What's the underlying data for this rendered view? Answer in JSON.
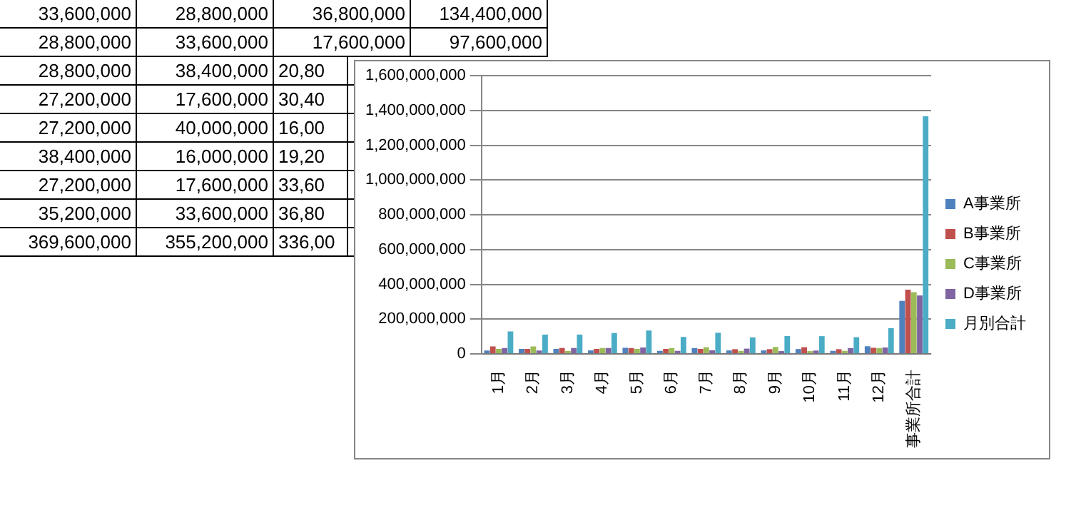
{
  "chart_data": {
    "type": "bar",
    "categories": [
      "1月",
      "2月",
      "3月",
      "4月",
      "5月",
      "6月",
      "7月",
      "8月",
      "9月",
      "10月",
      "11月",
      "12月",
      "事業所合計"
    ],
    "series": [
      {
        "name": "A事業所",
        "color": "#4f81bd",
        "values": [
          20000000,
          29000000,
          29000000,
          20000000,
          35200000,
          17600000,
          33600000,
          20000000,
          20000000,
          28000000,
          17600000,
          44000000,
          305000000
        ]
      },
      {
        "name": "B事業所",
        "color": "#c0504d",
        "values": [
          43000000,
          29000000,
          34000000,
          29000000,
          33600000,
          28800000,
          28800000,
          27200000,
          27200000,
          38400000,
          27200000,
          35200000,
          369600000
        ]
      },
      {
        "name": "C事業所",
        "color": "#9bbb59",
        "values": [
          29000000,
          43000000,
          17000000,
          34000000,
          28800000,
          33600000,
          38400000,
          17600000,
          40000000,
          16000000,
          17600000,
          33600000,
          355200000
        ]
      },
      {
        "name": "D事業所",
        "color": "#8064a2",
        "values": [
          34000000,
          20000000,
          34000000,
          34000000,
          36800000,
          17600000,
          20800000,
          30400000,
          16000000,
          19200000,
          33600000,
          36800000,
          336000000
        ]
      },
      {
        "name": "月別合計",
        "color": "#4bacc6",
        "values": [
          129000000,
          111000000,
          111000000,
          120000000,
          134400000,
          97600000,
          121600000,
          95000000,
          103000000,
          102000000,
          96000000,
          148000000,
          1366000000
        ]
      }
    ],
    "ylim": [
      0,
      1600000000
    ],
    "yticks": [
      {
        "value": 0,
        "label": "0"
      },
      {
        "value": 200000000,
        "label": "200,000,000"
      },
      {
        "value": 400000000,
        "label": "400,000,000"
      },
      {
        "value": 600000000,
        "label": "600,000,000"
      },
      {
        "value": 800000000,
        "label": "800,000,000"
      },
      {
        "value": 1000000000,
        "label": "1,000,000,000"
      },
      {
        "value": 1200000000,
        "label": "1,200,000,000"
      },
      {
        "value": 1400000000,
        "label": "1,400,000,000"
      },
      {
        "value": 1600000000,
        "label": "1,600,000,000"
      }
    ],
    "grid": "y",
    "legend": "right",
    "annotations": [
      "33,600,000",
      "28,800,000",
      "36,800,000",
      "134,400,000",
      "28,800,000",
      "33,600,000",
      "17,600,000",
      "97,600,000",
      "28,800,000",
      "38,400,000",
      "20,80",
      "27,200,000",
      "17,600,000",
      "30,40",
      "27,200,000",
      "40,000,000",
      "16,00",
      "38,400,000",
      "16,000,000",
      "19,20",
      "27,200,000",
      "17,600,000",
      "33,60",
      "35,200,000",
      "33,600,000",
      "36,80",
      "369,600,000",
      "355,200,000",
      "336,00"
    ]
  }
}
